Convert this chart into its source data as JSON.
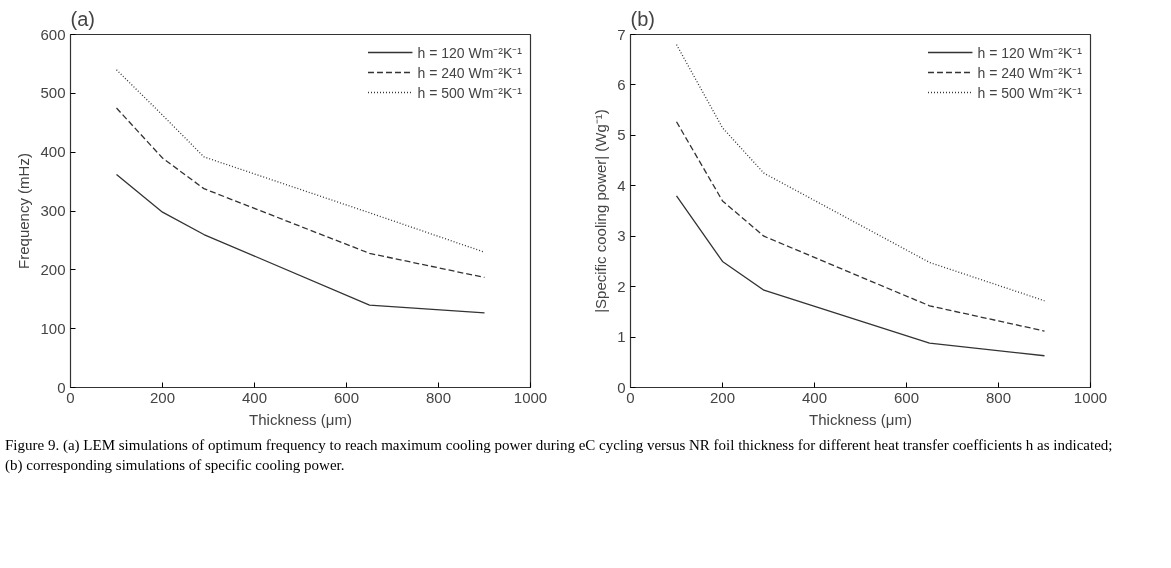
{
  "chart_data": [
    {
      "type": "line",
      "title": "(a)",
      "xlabel": "Thickness (μm)",
      "ylabel": "Frequency (mHz)",
      "x": [
        100,
        200,
        290,
        650,
        900
      ],
      "xlim": [
        0,
        1000
      ],
      "xticks": [
        0,
        200,
        400,
        600,
        800,
        1000
      ],
      "ylim": [
        0,
        600
      ],
      "yticks": [
        0,
        100,
        200,
        300,
        400,
        500,
        600
      ],
      "grid": false,
      "legend": "top right",
      "marker": "none",
      "series": [
        {
          "name": "h = 120 Wm⁻²K⁻¹",
          "color": "#333333",
          "line_style": "solid",
          "values": [
            362,
            298,
            260,
            140,
            127
          ]
        },
        {
          "name": "h = 240 Wm⁻²K⁻¹",
          "color": "#333333",
          "line_style": "dashed",
          "values": [
            475,
            390,
            338,
            228,
            187
          ]
        },
        {
          "name": "h = 500 Wm⁻²K⁻¹",
          "color": "#333333",
          "line_style": "dotted",
          "values": [
            540,
            463,
            392,
            297,
            230
          ]
        }
      ]
    },
    {
      "type": "line",
      "title": "(b)",
      "xlabel": "Thickness (μm)",
      "ylabel": "|Specific cooling power| (Wg⁻¹)",
      "x": [
        100,
        200,
        290,
        650,
        900
      ],
      "xlim": [
        0,
        1000
      ],
      "xticks": [
        0,
        200,
        400,
        600,
        800,
        1000
      ],
      "ylim": [
        0,
        7
      ],
      "yticks": [
        0,
        1,
        2,
        3,
        4,
        5,
        6,
        7
      ],
      "grid": false,
      "legend": "top right",
      "marker": "none",
      "annotations": [
        "Figure 9. (a) LEM simulations of optimum frequency to reach maximum cooling power during eC cycling versus NR foil thickness for different heat transfer coefficients h as indicated; (b) corresponding simulations of specific cooling power."
      ],
      "series": [
        {
          "name": "h = 120 Wm⁻²K⁻¹",
          "color": "#333333",
          "line_style": "solid",
          "values": [
            3.8,
            2.5,
            1.93,
            0.88,
            0.63
          ]
        },
        {
          "name": "h = 240 Wm⁻²K⁻¹",
          "color": "#333333",
          "line_style": "dashed",
          "values": [
            5.27,
            3.7,
            3.0,
            1.62,
            1.12
          ]
        },
        {
          "name": "h = 500 Wm⁻²K⁻¹",
          "color": "#333333",
          "line_style": "dotted",
          "values": [
            6.8,
            5.15,
            4.25,
            2.48,
            1.72
          ]
        }
      ]
    }
  ]
}
